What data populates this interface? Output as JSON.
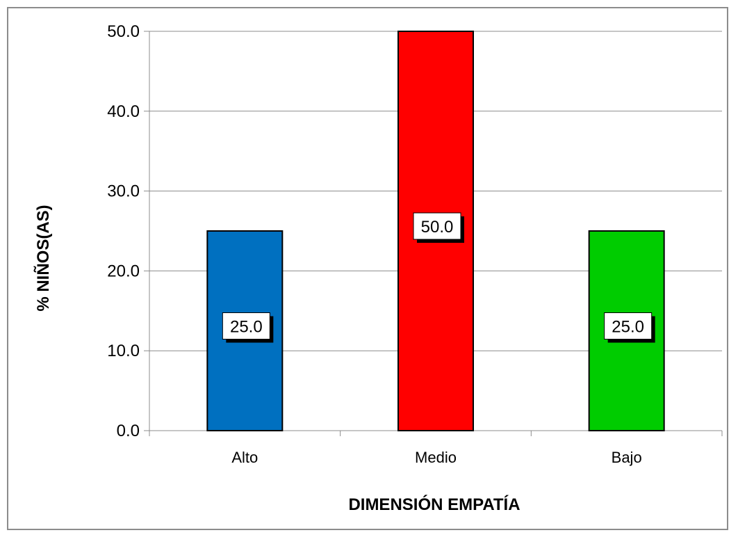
{
  "chart_data": {
    "type": "bar",
    "categories": [
      "Alto",
      "Medio",
      "Bajo"
    ],
    "values": [
      25.0,
      50.0,
      25.0
    ],
    "data_labels": [
      "25.0",
      "50.0",
      "25.0"
    ],
    "bar_colors": [
      "#0070c0",
      "#ff0000",
      "#00cc00"
    ],
    "title": "",
    "xlabel": "DIMENSIÓN EMPATÍA",
    "ylabel": "% NIÑOS(AS)",
    "ylim": [
      0,
      50
    ],
    "yticks": [
      "0.0",
      "10.0",
      "20.0",
      "30.0",
      "40.0",
      "50.0"
    ],
    "grid": true,
    "legend": "none"
  }
}
